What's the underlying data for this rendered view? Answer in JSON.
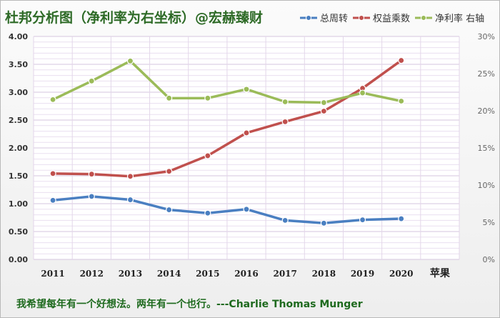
{
  "title": "杜邦分析图（净利率为右坐标）@宏赫臻财",
  "quote": "我希望每年有一个好想法。两年有一个也行。---Charlie Thomas Munger",
  "colors": {
    "turnover": "#4a7fc1",
    "equity": "#c0504d",
    "margin": "#9bbb59",
    "title": "#2d6a26",
    "quote": "#1e6a1e"
  },
  "legend": [
    {
      "label": "总周转",
      "color": "#4a7fc1"
    },
    {
      "label": "权益乘数",
      "color": "#c0504d"
    },
    {
      "label": "净利率 右轴",
      "color": "#9bbb59"
    }
  ],
  "chart_data": {
    "type": "line",
    "categories": [
      "2011",
      "2012",
      "2013",
      "2014",
      "2015",
      "2016",
      "2017",
      "2018",
      "2019",
      "2020",
      "苹果"
    ],
    "ylim": [
      0,
      4
    ],
    "yticks": [
      "0.00",
      "0.50",
      "1.00",
      "1.50",
      "2.00",
      "2.50",
      "3.00",
      "3.50",
      "4.00"
    ],
    "y2lim": [
      0,
      0.3
    ],
    "y2ticks": [
      "0%",
      "5%",
      "10%",
      "15%",
      "20%",
      "25%",
      "30%"
    ],
    "grid": true,
    "legend_position": "top-right",
    "series": [
      {
        "name": "总周转",
        "axis": "left",
        "color": "#4a7fc1",
        "values": [
          1.06,
          1.13,
          1.07,
          0.89,
          0.83,
          0.9,
          0.7,
          0.65,
          0.71,
          0.73,
          null
        ]
      },
      {
        "name": "权益乘数",
        "axis": "left",
        "color": "#c0504d",
        "values": [
          1.54,
          1.53,
          1.49,
          1.58,
          1.86,
          2.27,
          2.47,
          2.66,
          3.07,
          3.57,
          null
        ]
      },
      {
        "name": "净利率",
        "axis": "right",
        "color": "#9bbb59",
        "values": [
          0.215,
          0.24,
          0.267,
          0.217,
          0.217,
          0.229,
          0.212,
          0.211,
          0.224,
          0.213,
          null
        ]
      }
    ]
  }
}
